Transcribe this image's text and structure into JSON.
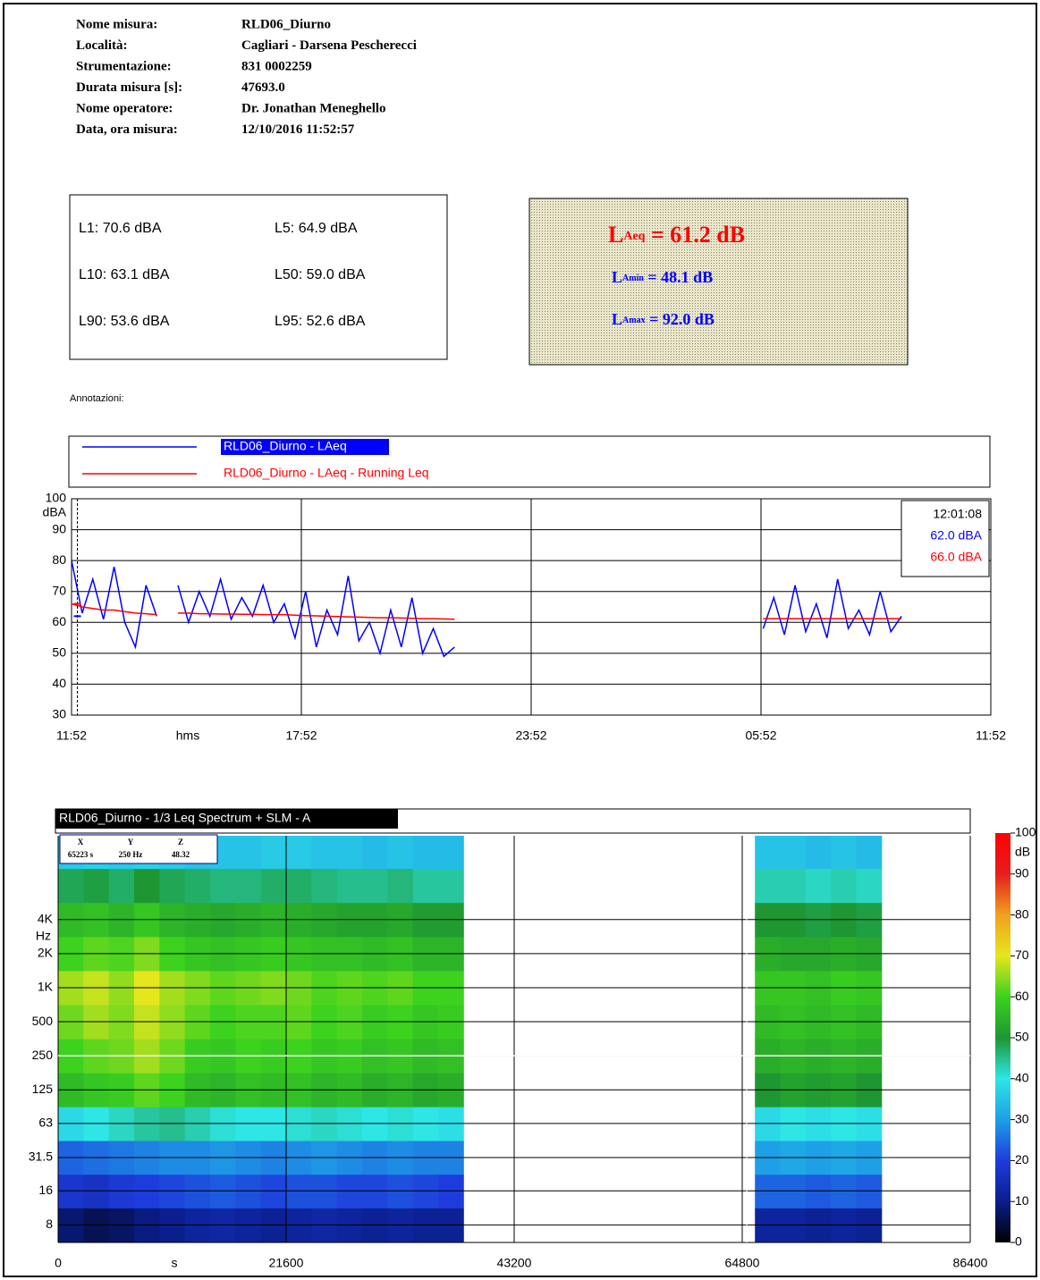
{
  "header": {
    "fields": [
      {
        "label": "Nome misura:",
        "value": "RLD06_Diurno"
      },
      {
        "label": "Località:",
        "value": "Cagliari - Darsena Pescherecci"
      },
      {
        "label": "Strumentazione:",
        "value": "831 0002259"
      },
      {
        "label": "Durata misura [s]:",
        "value": "47693.0"
      },
      {
        "label": "Nome operatore:",
        "value": "Dr. Jonathan Meneghello"
      },
      {
        "label": "Data, ora misura:",
        "value": "12/10/2016  11:52:57"
      }
    ]
  },
  "stats": [
    "L1: 70.6 dBA",
    "L5: 64.9 dBA",
    "L10: 63.1 dBA",
    "L50: 59.0 dBA",
    "L90: 53.6 dBA",
    "L95: 52.6 dBA"
  ],
  "summary": [
    {
      "symbol": "L",
      "sub": "Aeq",
      "text": " = 61.2 dB"
    },
    {
      "symbol": "L",
      "sub": "Amin",
      "text": " = 48.1 dB"
    },
    {
      "symbol": "L",
      "sub": "Amax",
      "text": " = 92.0 dB"
    }
  ],
  "annotations_label": "Annotazioni:",
  "chart_data": [
    {
      "type": "line",
      "x_label": "hms",
      "y_label": "dBA",
      "xlim": [
        0,
        86400
      ],
      "xticks": [
        {
          "value": 0,
          "label": "11:52"
        },
        {
          "value": 21600,
          "label": "17:52"
        },
        {
          "value": 43200,
          "label": "23:52"
        },
        {
          "value": 64800,
          "label": "05:52"
        },
        {
          "value": 86400,
          "label": "11:52"
        }
      ],
      "ylim": [
        30,
        100
      ],
      "yticks": [
        30,
        40,
        50,
        60,
        70,
        80,
        90,
        100
      ],
      "grid": true,
      "x": [
        0,
        1000,
        2000,
        3000,
        4000,
        5000,
        6000,
        7000,
        8000,
        9000,
        10000,
        11000,
        12000,
        13000,
        14000,
        15000,
        16000,
        17000,
        18000,
        19000,
        20000,
        21000,
        22000,
        23000,
        24000,
        25000,
        26000,
        27000,
        28000,
        29000,
        30000,
        31000,
        32000,
        33000,
        34000,
        35000,
        36000,
        50000,
        65000,
        66000,
        67000,
        68000,
        69000,
        70000,
        71000,
        72000,
        73000,
        74000,
        75000,
        76000,
        77000,
        78000
      ],
      "series": [
        {
          "name": "RLD06_Diurno - LAeq",
          "color": "#0000ff",
          "values": [
            80,
            63,
            74,
            61,
            78,
            60,
            52,
            72,
            62,
            null,
            72,
            60,
            70,
            62,
            74,
            61,
            68,
            62,
            72,
            60,
            66,
            55,
            70,
            52,
            64,
            56,
            75,
            54,
            60,
            50,
            64,
            52,
            68,
            50,
            58,
            49,
            52,
            null,
            58,
            68,
            56,
            72,
            57,
            66,
            55,
            74,
            58,
            64,
            56,
            70,
            57,
            62
          ]
        },
        {
          "name": "RLD06_Diurno - LAeq - Running Leq",
          "color": "#ff0000",
          "values": [
            66,
            65,
            64.5,
            64,
            64,
            63.5,
            63,
            62.8,
            62.5,
            null,
            63,
            63,
            62.8,
            62.8,
            62.7,
            62.7,
            62.6,
            62.6,
            62.5,
            62.5,
            62.5,
            62.3,
            62.2,
            62.1,
            62,
            61.9,
            61.8,
            61.7,
            61.6,
            61.5,
            61.5,
            61.4,
            61.3,
            61.2,
            61.2,
            61.1,
            61,
            null,
            61.2,
            61.2,
            61.2,
            61.2,
            61.2,
            61.2,
            61.2,
            61.2,
            61.2,
            61.2,
            61.2,
            61.2,
            61.2,
            61.2
          ]
        }
      ],
      "cursor": {
        "x": 548,
        "label": "12:01:08",
        "values": [
          {
            "value": 62.0,
            "label": "62.0 dBA"
          },
          {
            "value": 66.0,
            "label": "66.0 dBA"
          }
        ]
      }
    },
    {
      "type": "heatmap",
      "title": "RLD06_Diurno - 1/3 Leq Spectrum + SLM - A",
      "x_label": "s",
      "y_label": "Hz",
      "log_y": true,
      "xlim": [
        0,
        86400
      ],
      "xticks": [
        0,
        21600,
        43200,
        64800,
        86400
      ],
      "ylim": [
        5.6,
        22000
      ],
      "yticks": [
        8,
        16,
        31.5,
        63,
        125,
        250,
        500,
        {
          "value": 1000,
          "label": "1K"
        },
        {
          "value": 2000,
          "label": "2K"
        },
        {
          "value": 4000,
          "label": "4K"
        }
      ],
      "x": [
        1200,
        3600,
        6000,
        8400,
        10800,
        13200,
        15600,
        18000,
        20400,
        22800,
        25200,
        27600,
        30000,
        32400,
        34800,
        37200,
        67200,
        69600,
        72000,
        74400,
        76800
      ],
      "y": [
        8,
        16,
        31.5,
        63,
        125,
        250,
        500,
        1000,
        2000,
        4000,
        8000,
        16000
      ],
      "z": [
        [
          8,
          18,
          24,
          38,
          56,
          60,
          63,
          66,
          60,
          56,
          48,
          36
        ],
        [
          6,
          17,
          25,
          40,
          58,
          62,
          66,
          68,
          62,
          57,
          49,
          37
        ],
        [
          7,
          19,
          26,
          42,
          59,
          63,
          64,
          65,
          61,
          55,
          47,
          36
        ],
        [
          9,
          20,
          27,
          44,
          62,
          66,
          68,
          70,
          64,
          58,
          50,
          37
        ],
        [
          10,
          21,
          28,
          45,
          60,
          63,
          65,
          66,
          60,
          55,
          48,
          36
        ],
        [
          12,
          22,
          28,
          43,
          56,
          59,
          62,
          64,
          58,
          54,
          47,
          35
        ],
        [
          13,
          23,
          29,
          41,
          55,
          58,
          60,
          62,
          57,
          53,
          46,
          35
        ],
        [
          12,
          22,
          28,
          40,
          57,
          60,
          61,
          63,
          58,
          54,
          46,
          35
        ],
        [
          11,
          21,
          27,
          40,
          56,
          59,
          61,
          64,
          59,
          55,
          47,
          36
        ],
        [
          12,
          22,
          28,
          41,
          57,
          60,
          62,
          63,
          58,
          54,
          47,
          36
        ],
        [
          13,
          22,
          29,
          42,
          55,
          58,
          60,
          61,
          57,
          53,
          46,
          35
        ],
        [
          12,
          21,
          28,
          41,
          56,
          59,
          61,
          62,
          57,
          52,
          45,
          35
        ],
        [
          11,
          21,
          27,
          40,
          54,
          57,
          59,
          61,
          56,
          52,
          45,
          34
        ],
        [
          12,
          22,
          28,
          41,
          55,
          58,
          60,
          62,
          57,
          53,
          46,
          35
        ],
        [
          11,
          21,
          27,
          40,
          53,
          56,
          58,
          60,
          55,
          51,
          44,
          34
        ],
        [
          11,
          20,
          27,
          39,
          54,
          57,
          59,
          60,
          55,
          51,
          44,
          34
        ],
        [
          12,
          24,
          30,
          38,
          50,
          54,
          56,
          58,
          54,
          50,
          43,
          35
        ],
        [
          12,
          24,
          31,
          40,
          52,
          55,
          57,
          58,
          53,
          50,
          43,
          35
        ],
        [
          11,
          23,
          30,
          39,
          51,
          54,
          56,
          57,
          53,
          49,
          42,
          34
        ],
        [
          12,
          24,
          31,
          40,
          52,
          55,
          57,
          59,
          54,
          50,
          43,
          35
        ],
        [
          11,
          23,
          30,
          39,
          50,
          54,
          56,
          58,
          53,
          49,
          42,
          34
        ]
      ],
      "zlim": [
        0,
        100
      ],
      "zticks": [
        0,
        10,
        20,
        30,
        40,
        50,
        60,
        70,
        80,
        90,
        100
      ],
      "z_label": "dB",
      "colorscale": [
        "#000000",
        "#0a1e8c",
        "#1e3cdc",
        "#1ea0e6",
        "#2ee6e6",
        "#1e9632",
        "#3cd21e",
        "#e6e61e",
        "#f0a01e",
        "#e61e1e",
        "#ff0000"
      ],
      "cursor": {
        "headers": [
          "X",
          "Y",
          "Z"
        ],
        "x": {
          "value": 65223,
          "label": "65223 s"
        },
        "y": {
          "value": 250,
          "label": "250 Hz"
        },
        "z": 48.32
      }
    }
  ]
}
